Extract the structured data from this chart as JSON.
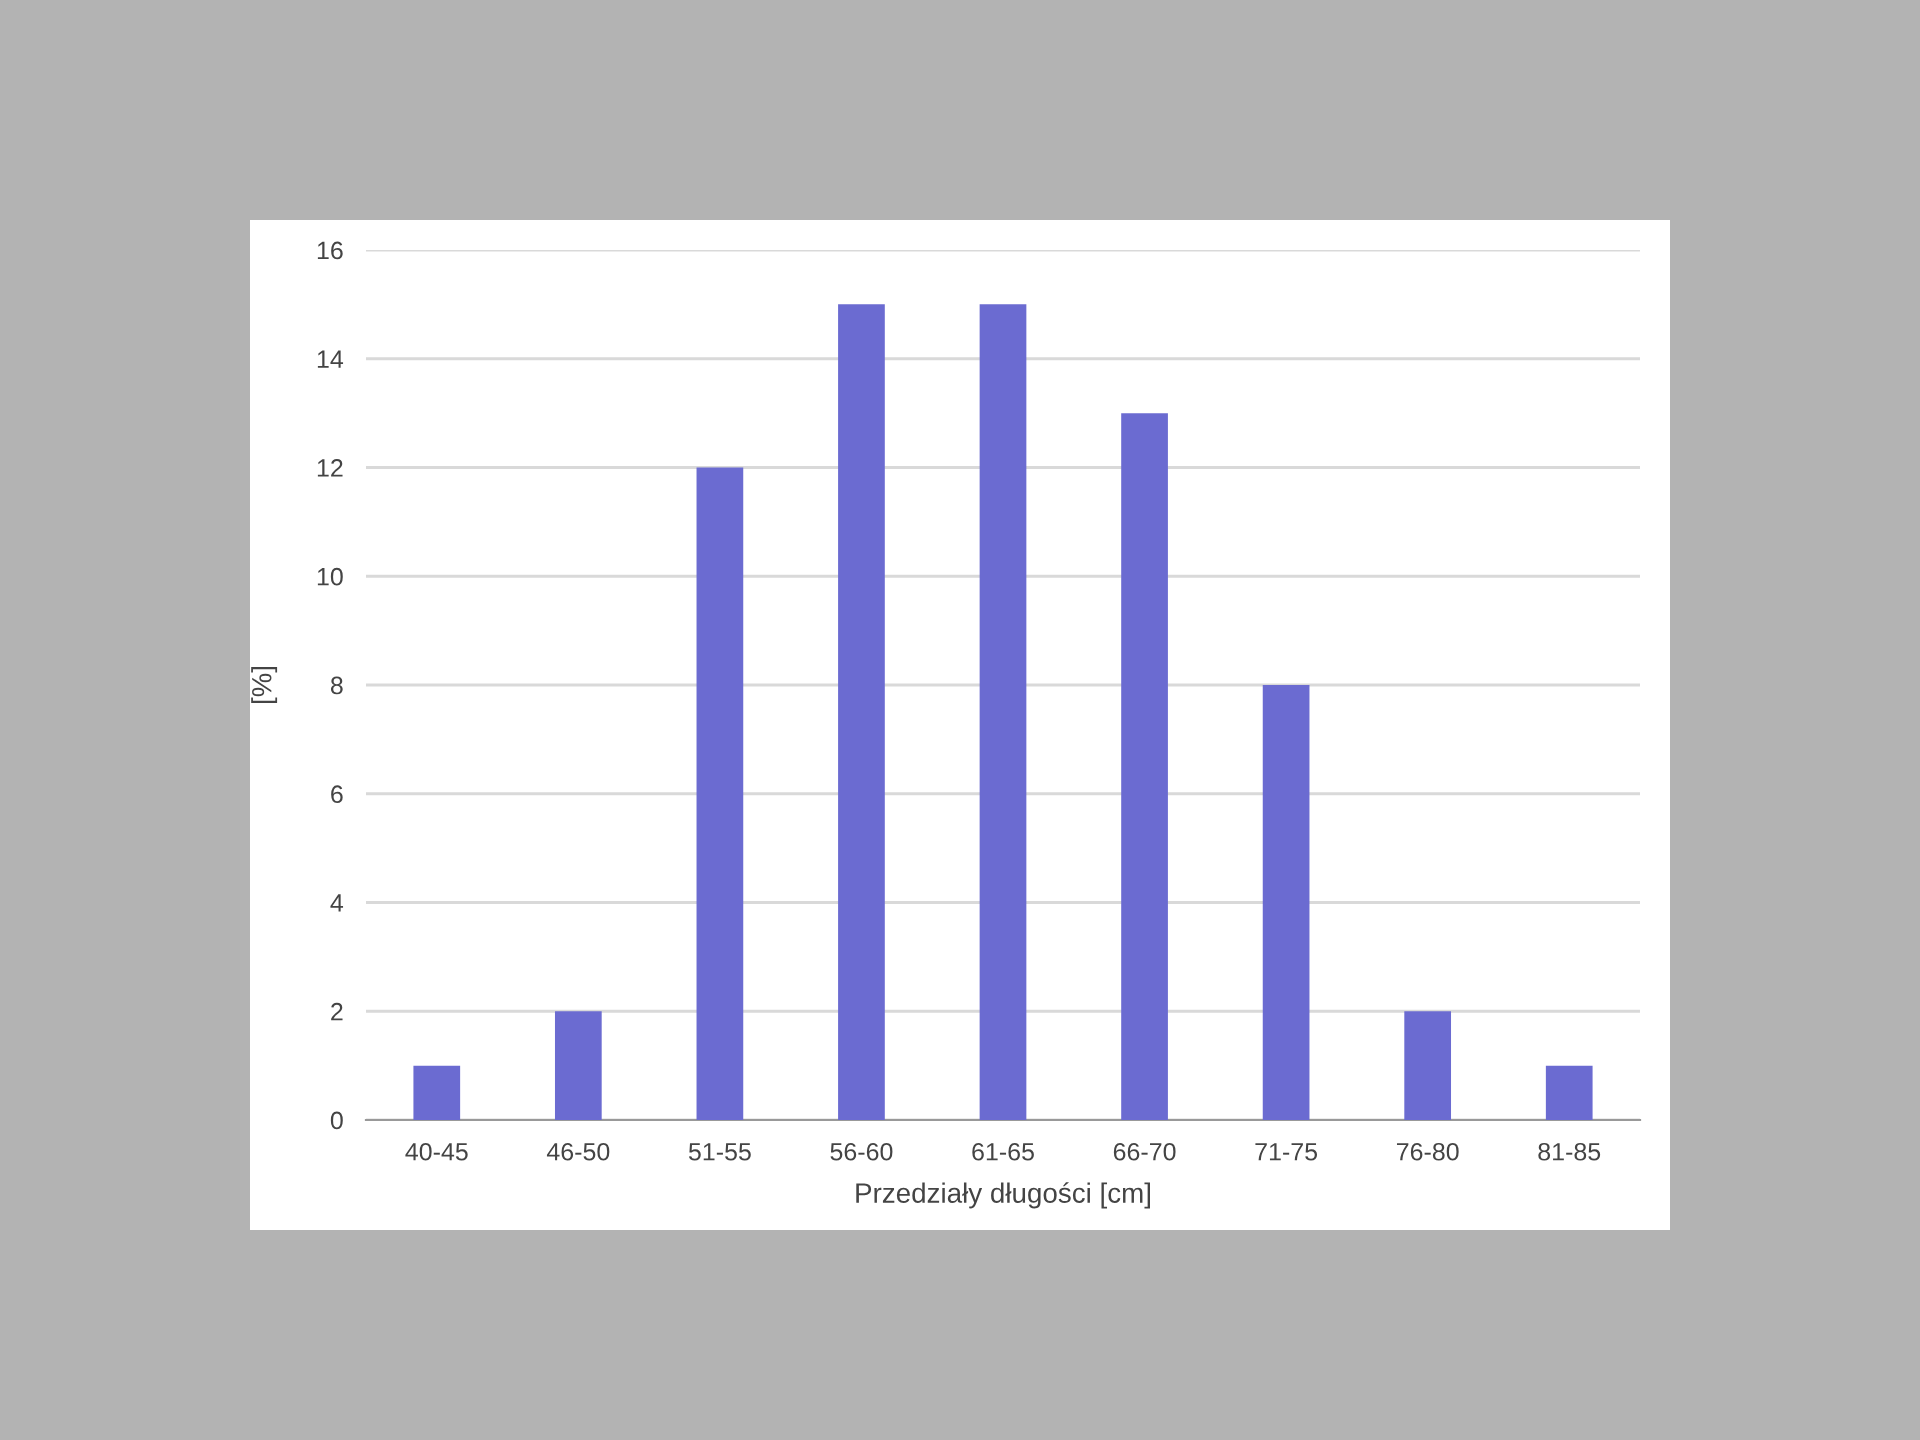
{
  "chart_data": {
    "type": "bar",
    "xlabel": "Przedziały długości [cm]",
    "ylabel": "[%]",
    "categories": [
      "40-45",
      "46-50",
      "51-55",
      "56-60",
      "61-65",
      "66-70",
      "71-75",
      "76-80",
      "81-85"
    ],
    "values": [
      1,
      2,
      12,
      15,
      15,
      13,
      8,
      2,
      1
    ],
    "color": "#6b6bd1",
    "ylim": [
      0,
      16
    ],
    "yticks": [
      0,
      2,
      4,
      6,
      8,
      10,
      12,
      14,
      16
    ],
    "grid": "y",
    "legend": false
  }
}
